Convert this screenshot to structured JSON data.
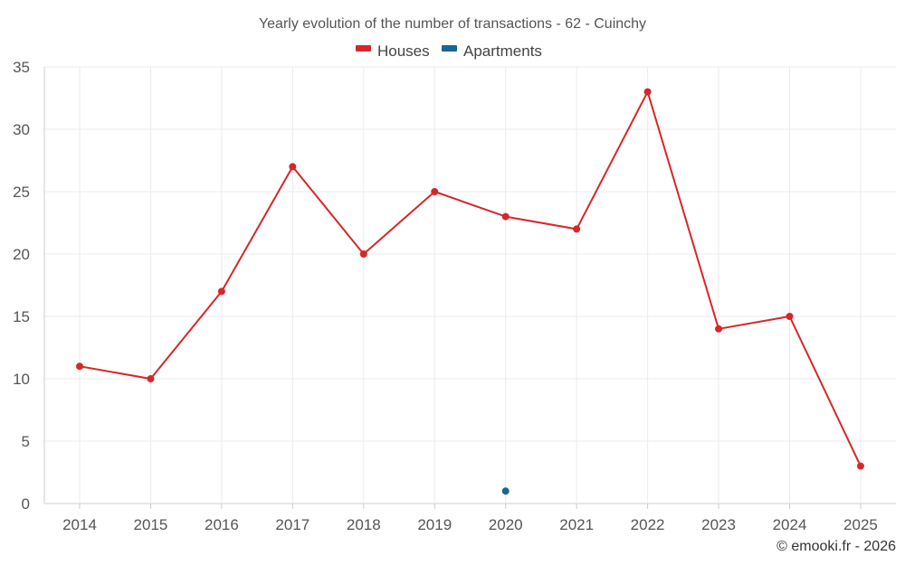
{
  "chart_data": {
    "type": "line",
    "title": "Yearly evolution of the number of transactions - 62 - Cuinchy",
    "categories": [
      "2014",
      "2015",
      "2016",
      "2017",
      "2018",
      "2019",
      "2020",
      "2021",
      "2022",
      "2023",
      "2024",
      "2025"
    ],
    "series": [
      {
        "name": "Houses",
        "color": "#d62728",
        "values": [
          11,
          10,
          17,
          27,
          20,
          25,
          23,
          22,
          33,
          14,
          15,
          3
        ]
      },
      {
        "name": "Apartments",
        "color": "#1a6496",
        "values": [
          null,
          null,
          null,
          null,
          null,
          null,
          1,
          null,
          null,
          null,
          null,
          null
        ]
      }
    ],
    "yticks": [
      "0",
      "5",
      "10",
      "15",
      "20",
      "25",
      "30",
      "35"
    ],
    "ylim": [
      0,
      35
    ],
    "xlabel": "",
    "ylabel": "",
    "grid": true,
    "legend_position": "top-center"
  },
  "credit": "© emooki.fr - 2026"
}
